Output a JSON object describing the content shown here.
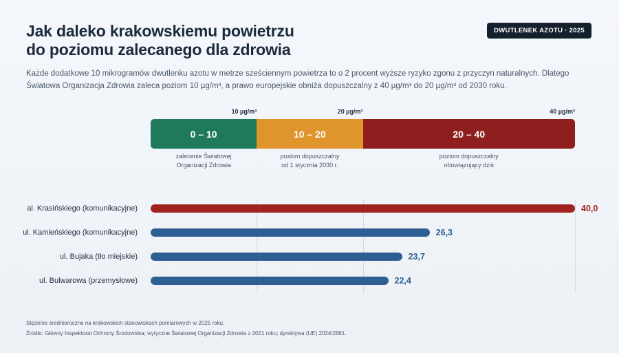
{
  "header": {
    "title_line1": "Jak daleko krakowskiemu powietrzu",
    "title_line2": "do poziomu zalecanego dla zdrowia",
    "badge": "DWUTLENEK AZOTU · 2025",
    "intro": "Każde dodatkowe 10 mikrogramów dwutlenku azotu w metrze sześciennym powietrza to o 2 procent wyższe ryzyko zgonu z przyczyn naturalnych. Dlatego Światowa Organizacja Zdrowia zaleca poziom 10 µg/m³, a prawo europejskie obniża dopuszczalny z 40 µg/m³ do 20 µg/m³ od 2030 roku."
  },
  "chart_data": {
    "type": "bar",
    "orientation": "horizontal",
    "xlim": [
      0,
      40
    ],
    "grid": true,
    "thresholds": [
      {
        "value": 10,
        "label": "10 µg/m³"
      },
      {
        "value": 20,
        "label": "20 µg/m³"
      },
      {
        "value": 40,
        "label": "40 µg/m³"
      }
    ],
    "bands": [
      {
        "from": 0,
        "to": 10,
        "label": "0 – 10",
        "color": "#1e7a5a",
        "description": "zalecenie Światowej\nOrganizacji Zdrowia"
      },
      {
        "from": 10,
        "to": 20,
        "label": "10 – 20",
        "color": "#e0952c",
        "description": "poziom dopuszczalny\nod 1 stycznia 2030 r."
      },
      {
        "from": 20,
        "to": 40,
        "label": "20 – 40",
        "color": "#8e1f1e",
        "description": "poziom dopuszczalny\nobowiązujący dziś"
      }
    ],
    "categories": [
      "al. Krasińskiego (komunikacyjne)",
      "ul. Kamieńskiego (komunikacyjne)",
      "ul. Bujaka (tło miejskie)",
      "ul. Bulwarowa (przemysłowe)"
    ],
    "values": [
      40.0,
      26.3,
      23.7,
      22.4
    ],
    "value_labels": [
      "40,0",
      "26,3",
      "23,7",
      "22,4"
    ],
    "bar_colors": [
      "#a1231f",
      "#2e5f93",
      "#2e5f93",
      "#2e5f93"
    ]
  },
  "footer": {
    "note": "Stężenie średnioroczne na krakowskich stanowiskach pomiarowych w 2025 roku.",
    "source": "Źródło: Główny Inspektorat Ochrony Środowiska; wytyczne Światowej Organizacji Zdrowia z 2021 roku; dyrektywa (UE) 2024/2881."
  }
}
